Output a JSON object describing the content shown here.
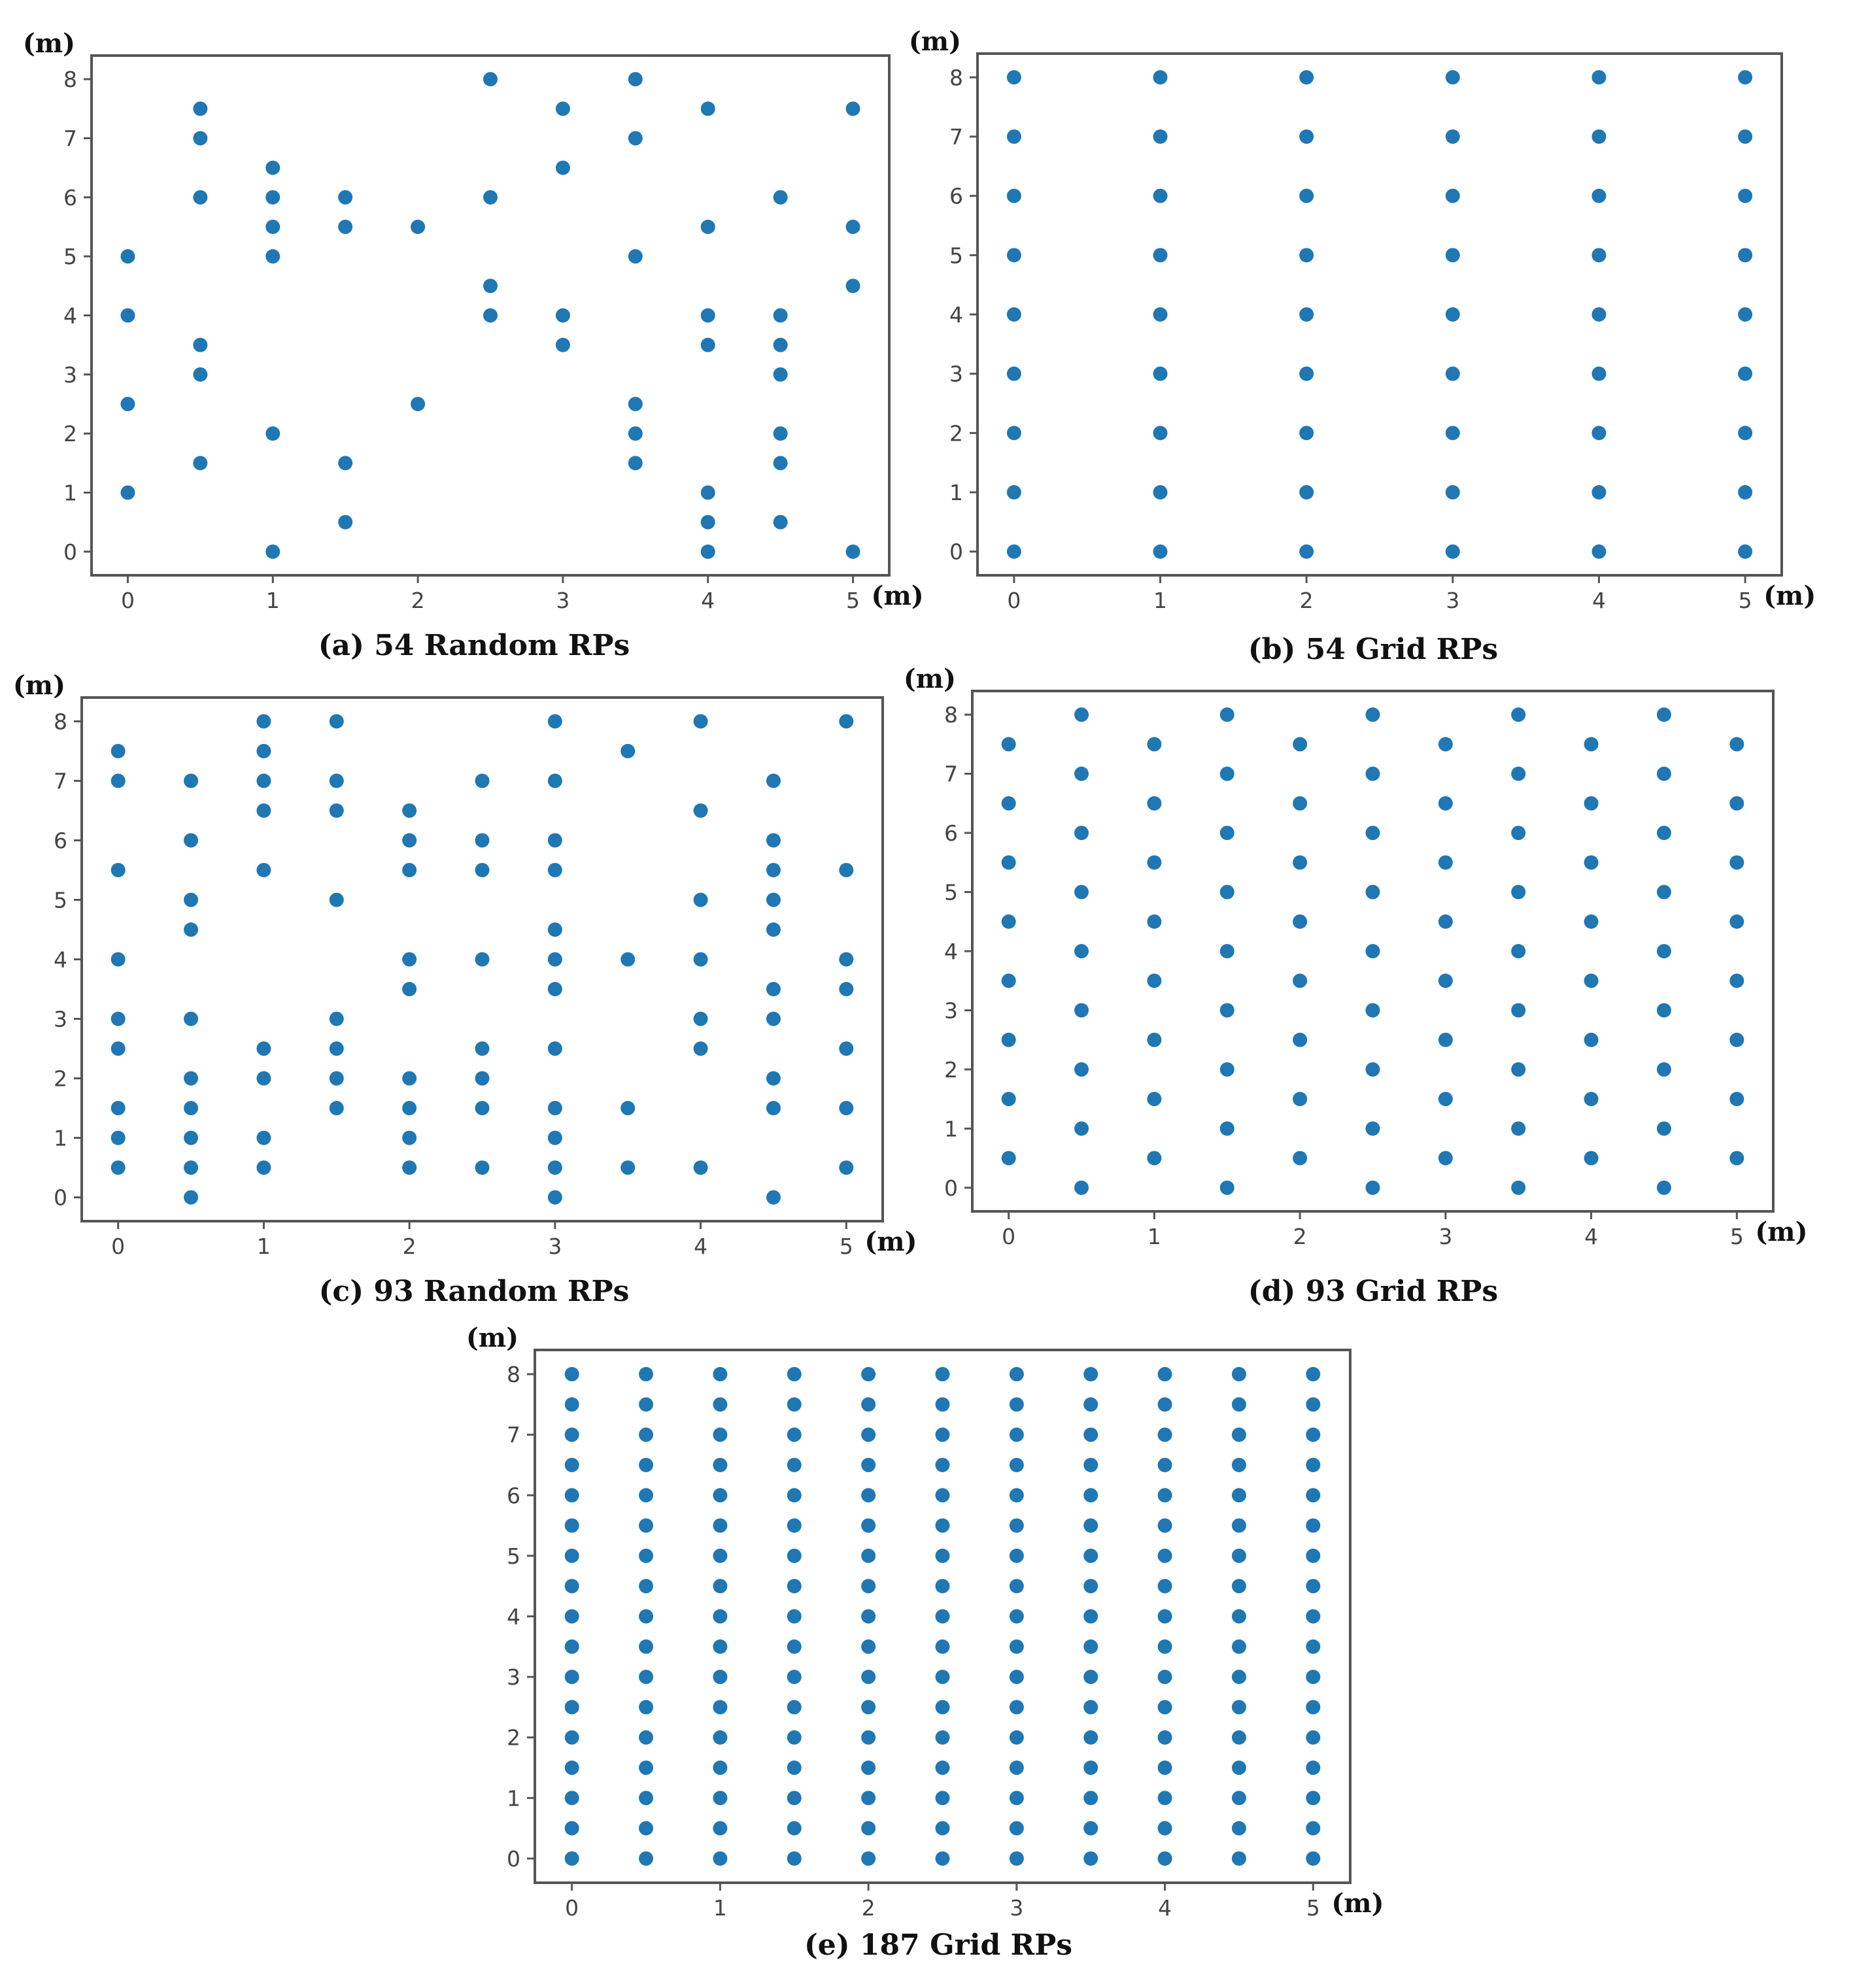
{
  "chart_data": [
    {
      "type": "scatter",
      "caption": "(a) 54 Random RPs",
      "xunit": "(m)",
      "yunit": "(m)",
      "xlim": [
        -0.25,
        5.25
      ],
      "ylim": [
        -0.4,
        8.4
      ],
      "xticks": [
        "0",
        "1",
        "2",
        "3",
        "4",
        "5"
      ],
      "yticks": [
        "0",
        "1",
        "2",
        "3",
        "4",
        "5",
        "6",
        "7",
        "8"
      ],
      "color": "#1f77b4",
      "points": [
        [
          0,
          1
        ],
        [
          0,
          2.5
        ],
        [
          0,
          4
        ],
        [
          0,
          5
        ],
        [
          0.5,
          1.5
        ],
        [
          0.5,
          3
        ],
        [
          0.5,
          3.5
        ],
        [
          0.5,
          6
        ],
        [
          0.5,
          7
        ],
        [
          0.5,
          7.5
        ],
        [
          1,
          0
        ],
        [
          1,
          2
        ],
        [
          1,
          5
        ],
        [
          1,
          5.5
        ],
        [
          1,
          6
        ],
        [
          1,
          6.5
        ],
        [
          1.5,
          0.5
        ],
        [
          1.5,
          1.5
        ],
        [
          1.5,
          5.5
        ],
        [
          1.5,
          6
        ],
        [
          2,
          2.5
        ],
        [
          2,
          5.5
        ],
        [
          2.5,
          4
        ],
        [
          2.5,
          4.5
        ],
        [
          2.5,
          6
        ],
        [
          2.5,
          8
        ],
        [
          3,
          3.5
        ],
        [
          3,
          4
        ],
        [
          3,
          6.5
        ],
        [
          3,
          7.5
        ],
        [
          3.5,
          1.5
        ],
        [
          3.5,
          2
        ],
        [
          3.5,
          2.5
        ],
        [
          3.5,
          5
        ],
        [
          3.5,
          7
        ],
        [
          3.5,
          8
        ],
        [
          4,
          0
        ],
        [
          4,
          0.5
        ],
        [
          4,
          1
        ],
        [
          4,
          3.5
        ],
        [
          4,
          4
        ],
        [
          4,
          5.5
        ],
        [
          4,
          7.5
        ],
        [
          4.5,
          0.5
        ],
        [
          4.5,
          1.5
        ],
        [
          4.5,
          2
        ],
        [
          4.5,
          3
        ],
        [
          4.5,
          3.5
        ],
        [
          4.5,
          4
        ],
        [
          4.5,
          6
        ],
        [
          5,
          0
        ],
        [
          5,
          4.5
        ],
        [
          5,
          5.5
        ],
        [
          5,
          7.5
        ]
      ]
    },
    {
      "type": "scatter",
      "caption": "(b) 54 Grid RPs",
      "xunit": "(m)",
      "yunit": "(m)",
      "xlim": [
        -0.25,
        5.25
      ],
      "ylim": [
        -0.4,
        8.4
      ],
      "xticks": [
        "0",
        "1",
        "2",
        "3",
        "4",
        "5"
      ],
      "yticks": [
        "0",
        "1",
        "2",
        "3",
        "4",
        "5",
        "6",
        "7",
        "8"
      ],
      "color": "#1f77b4",
      "grid_points": {
        "x_start": 0,
        "x_step": 1,
        "x_count": 6,
        "y_start": 0,
        "y_step": 1,
        "y_count": 9
      }
    },
    {
      "type": "scatter",
      "caption": "(c) 93 Random RPs",
      "xunit": "(m)",
      "yunit": "(m)",
      "xlim": [
        -0.25,
        5.25
      ],
      "ylim": [
        -0.4,
        8.4
      ],
      "xticks": [
        "0",
        "1",
        "2",
        "3",
        "4",
        "5"
      ],
      "yticks": [
        "0",
        "1",
        "2",
        "3",
        "4",
        "5",
        "6",
        "7",
        "8"
      ],
      "color": "#1f77b4",
      "points": [
        [
          0,
          0.5
        ],
        [
          0,
          1
        ],
        [
          0,
          1.5
        ],
        [
          0,
          2.5
        ],
        [
          0,
          3
        ],
        [
          0,
          4
        ],
        [
          0,
          5.5
        ],
        [
          0,
          7
        ],
        [
          0,
          7.5
        ],
        [
          0.5,
          0
        ],
        [
          0.5,
          0.5
        ],
        [
          0.5,
          1
        ],
        [
          0.5,
          1.5
        ],
        [
          0.5,
          2
        ],
        [
          0.5,
          3
        ],
        [
          0.5,
          4.5
        ],
        [
          0.5,
          5
        ],
        [
          0.5,
          6
        ],
        [
          0.5,
          7
        ],
        [
          1,
          0.5
        ],
        [
          1,
          1
        ],
        [
          1,
          2
        ],
        [
          1,
          2.5
        ],
        [
          1,
          5.5
        ],
        [
          1,
          6.5
        ],
        [
          1,
          7
        ],
        [
          1,
          7.5
        ],
        [
          1,
          8
        ],
        [
          1.5,
          1.5
        ],
        [
          1.5,
          2
        ],
        [
          1.5,
          2.5
        ],
        [
          1.5,
          3
        ],
        [
          1.5,
          5
        ],
        [
          1.5,
          6.5
        ],
        [
          1.5,
          7
        ],
        [
          1.5,
          8
        ],
        [
          2,
          0.5
        ],
        [
          2,
          1
        ],
        [
          2,
          1.5
        ],
        [
          2,
          2
        ],
        [
          2,
          3.5
        ],
        [
          2,
          4
        ],
        [
          2,
          5.5
        ],
        [
          2,
          6
        ],
        [
          2,
          6.5
        ],
        [
          2.5,
          0.5
        ],
        [
          2.5,
          1.5
        ],
        [
          2.5,
          2
        ],
        [
          2.5,
          2.5
        ],
        [
          2.5,
          4
        ],
        [
          2.5,
          5.5
        ],
        [
          2.5,
          6
        ],
        [
          2.5,
          7
        ],
        [
          3,
          0
        ],
        [
          3,
          0.5
        ],
        [
          3,
          1
        ],
        [
          3,
          1.5
        ],
        [
          3,
          2.5
        ],
        [
          3,
          3.5
        ],
        [
          3,
          4
        ],
        [
          3,
          4.5
        ],
        [
          3,
          5.5
        ],
        [
          3,
          6
        ],
        [
          3,
          7
        ],
        [
          3,
          8
        ],
        [
          3.5,
          0.5
        ],
        [
          3.5,
          1.5
        ],
        [
          3.5,
          4
        ],
        [
          3.5,
          7.5
        ],
        [
          4,
          0.5
        ],
        [
          4,
          2.5
        ],
        [
          4,
          3
        ],
        [
          4,
          4
        ],
        [
          4,
          5
        ],
        [
          4,
          6.5
        ],
        [
          4,
          8
        ],
        [
          4.5,
          0
        ],
        [
          4.5,
          1.5
        ],
        [
          4.5,
          2
        ],
        [
          4.5,
          3
        ],
        [
          4.5,
          3.5
        ],
        [
          4.5,
          4.5
        ],
        [
          4.5,
          5
        ],
        [
          4.5,
          5.5
        ],
        [
          4.5,
          6
        ],
        [
          4.5,
          7
        ],
        [
          5,
          0.5
        ],
        [
          5,
          1.5
        ],
        [
          5,
          2.5
        ],
        [
          5,
          3.5
        ],
        [
          5,
          4
        ],
        [
          5,
          5.5
        ],
        [
          5,
          8
        ]
      ]
    },
    {
      "type": "scatter",
      "caption": "(d) 93 Grid RPs",
      "xunit": "(m)",
      "yunit": "(m)",
      "xlim": [
        -0.25,
        5.25
      ],
      "ylim": [
        -0.4,
        8.4
      ],
      "xticks": [
        "0",
        "1",
        "2",
        "3",
        "4",
        "5"
      ],
      "yticks": [
        "0",
        "1",
        "2",
        "3",
        "4",
        "5",
        "6",
        "7",
        "8"
      ],
      "color": "#1f77b4",
      "staggered_grid": {
        "even_x": [
          0,
          1,
          2,
          3,
          4,
          5
        ],
        "even_y": [
          0.5,
          1.5,
          2.5,
          3.5,
          4.5,
          5.5,
          6.5,
          7.5
        ],
        "odd_x": [
          0.5,
          1.5,
          2.5,
          3.5,
          4.5
        ],
        "odd_y": [
          0,
          1,
          2,
          3,
          4,
          5,
          6,
          7,
          8
        ]
      }
    },
    {
      "type": "scatter",
      "caption": "(e) 187 Grid RPs",
      "xunit": "(m)",
      "yunit": "(m)",
      "xlim": [
        -0.25,
        5.25
      ],
      "ylim": [
        -0.4,
        8.4
      ],
      "xticks": [
        "0",
        "1",
        "2",
        "3",
        "4",
        "5"
      ],
      "yticks": [
        "0",
        "1",
        "2",
        "3",
        "4",
        "5",
        "6",
        "7",
        "8"
      ],
      "color": "#1f77b4",
      "grid_points": {
        "x_start": 0,
        "x_step": 0.5,
        "x_count": 11,
        "y_start": 0,
        "y_step": 0.5,
        "y_count": 17
      }
    }
  ]
}
